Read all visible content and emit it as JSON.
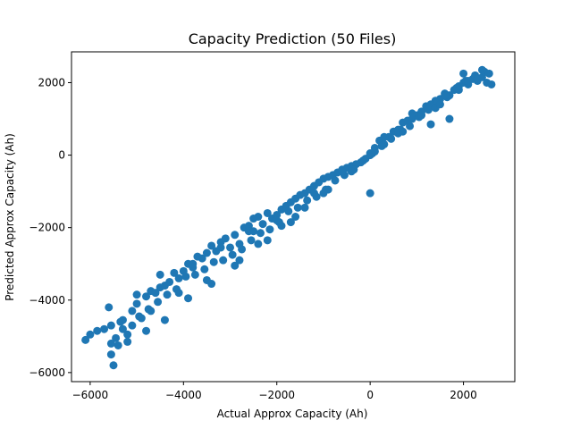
{
  "chart_data": {
    "type": "scatter",
    "title": "Capacity Prediction (50 Files)",
    "xlabel": "Actual Approx Capacity (Ah)",
    "ylabel": "Predicted Approx Capacity (Ah)",
    "xlim": [
      -6400,
      3100
    ],
    "ylim": [
      -6250,
      2850
    ],
    "xticks": [
      -6000,
      -4000,
      -2000,
      0,
      2000
    ],
    "xtick_labels": [
      "−6000",
      "−4000",
      "−2000",
      "0",
      "2000"
    ],
    "yticks": [
      -6000,
      -4000,
      -2000,
      0,
      2000
    ],
    "ytick_labels": [
      "−6000",
      "−4000",
      "−2000",
      "0",
      "2000"
    ],
    "grid": false,
    "legend": "none",
    "marker_color": "#1f77b4",
    "series": [
      {
        "x": [
          -6100,
          -6000,
          -5850,
          -5700,
          -5550,
          -5500,
          -5450,
          -5350,
          -5200,
          -5100,
          -5000,
          -4900,
          -4800,
          -4700,
          -4600,
          -4500,
          -4400,
          -4300,
          -4200,
          -4100,
          -4000,
          -3900,
          -3800,
          -3700,
          -3600,
          -3500,
          -3400,
          -3300,
          -3200,
          -3100,
          -3000,
          -2900,
          -2800,
          -2700,
          -2600,
          -2500,
          -2400,
          -2300,
          -2200,
          -2100,
          -2000,
          -1900,
          -1800,
          -1700,
          -1600,
          -1500,
          -1400,
          -1300,
          -1200,
          -1100,
          -1000,
          -900,
          -800,
          -700,
          -600,
          -500,
          -400,
          -300,
          -200,
          -100,
          0,
          100,
          200,
          300,
          400,
          500,
          600,
          700,
          800,
          900,
          1000,
          1100,
          1200,
          1300,
          1400,
          1500,
          1600,
          1700,
          1800,
          1900,
          2000,
          2100,
          2200,
          2300,
          2400,
          2500,
          2600,
          -5400,
          -5300,
          -5100,
          -4950,
          -4750,
          -4550,
          -4350,
          -4150,
          -3950,
          -3750,
          -3550,
          -3350,
          -3150,
          -2950,
          -2750,
          -2550,
          -2350,
          -2150,
          -1950,
          -1750,
          -1550,
          -1350,
          -1150,
          -950,
          -750,
          -550,
          -350,
          -150,
          50,
          250,
          450,
          650,
          850,
          1050,
          1250,
          1450,
          1650,
          1850,
          2050,
          2250,
          2450,
          -5550,
          -5200,
          -4800,
          -4400,
          -3900,
          -3400,
          -2900,
          -2400,
          -1900,
          -1400,
          -900,
          -400,
          100,
          600,
          1100,
          1600,
          2100,
          2550,
          -5300,
          -4700,
          -4100,
          -3500,
          -2800,
          -2200,
          -1600,
          -1000,
          0,
          700,
          1400,
          1900,
          2300,
          -5600,
          -5000,
          -4500,
          -3800,
          -3200,
          -2600,
          -2000,
          -1200,
          -600,
          300,
          900,
          1500,
          2000,
          2400,
          0,
          -5550,
          -2500,
          -1700,
          1300,
          1700
        ],
        "y": [
          -5100,
          -4950,
          -4850,
          -4800,
          -4700,
          -5800,
          -5050,
          -4600,
          -4950,
          -4300,
          -4100,
          -4500,
          -3900,
          -3750,
          -3800,
          -3650,
          -3600,
          -3500,
          -3250,
          -3400,
          -3200,
          -3000,
          -3100,
          -2800,
          -2850,
          -2700,
          -2500,
          -2650,
          -2400,
          -2300,
          -2550,
          -2200,
          -2450,
          -2000,
          -1950,
          -2100,
          -1700,
          -1900,
          -1600,
          -1750,
          -1650,
          -1500,
          -1400,
          -1300,
          -1200,
          -1100,
          -1050,
          -950,
          -850,
          -750,
          -650,
          -600,
          -550,
          -480,
          -400,
          -350,
          -300,
          -250,
          -200,
          -100,
          0,
          200,
          400,
          300,
          500,
          650,
          700,
          900,
          950,
          1000,
          1100,
          1200,
          1350,
          1400,
          1500,
          1550,
          1700,
          1650,
          1800,
          1900,
          2000,
          1950,
          2100,
          2050,
          2150,
          2000,
          1950,
          -5250,
          -4550,
          -4700,
          -4450,
          -4250,
          -4050,
          -3850,
          -3700,
          -3350,
          -3300,
          -3150,
          -2950,
          -2900,
          -2750,
          -2600,
          -2350,
          -2150,
          -2050,
          -1850,
          -1550,
          -1450,
          -1250,
          -1150,
          -950,
          -700,
          -550,
          -400,
          -150,
          50,
          250,
          450,
          700,
          800,
          1050,
          1250,
          1450,
          1600,
          1850,
          2050,
          2200,
          2300,
          -5500,
          -5150,
          -4850,
          -4550,
          -3950,
          -3550,
          -3050,
          -2450,
          -1950,
          -1450,
          -950,
          -450,
          100,
          600,
          1100,
          1650,
          2050,
          2250,
          -4800,
          -4300,
          -3800,
          -3450,
          -2900,
          -2350,
          -1700,
          -1050,
          50,
          650,
          1300,
          1800,
          2100,
          -4200,
          -3850,
          -3300,
          -3000,
          -2550,
          -2100,
          -1800,
          -1050,
          -450,
          500,
          1150,
          1400,
          2250,
          2350,
          -1050,
          -5200,
          -1750,
          -1850,
          850,
          1000
        ]
      }
    ]
  }
}
